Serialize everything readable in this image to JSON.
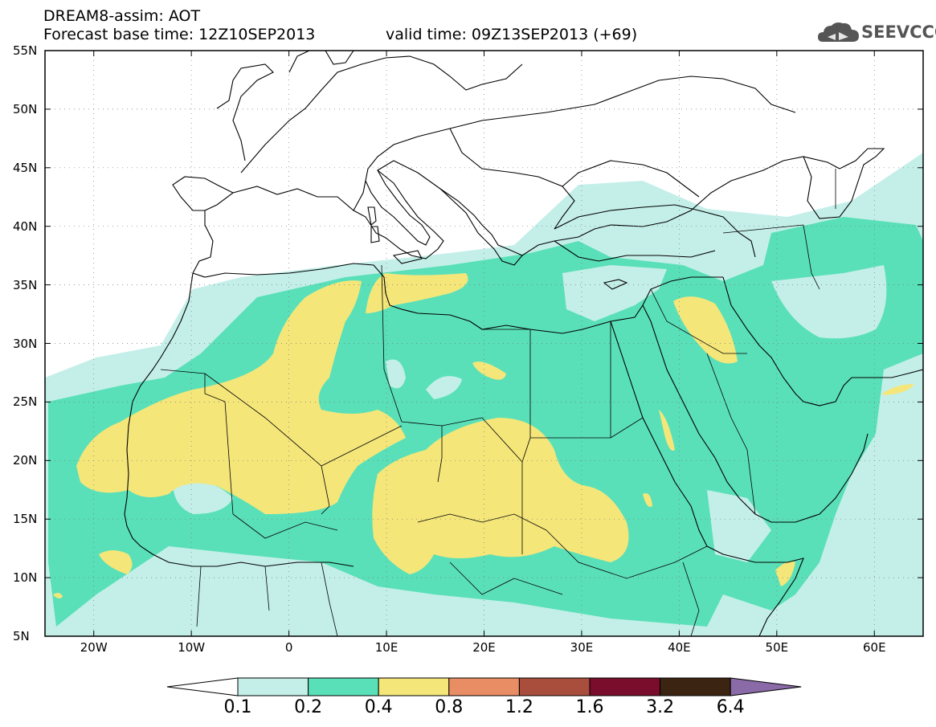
{
  "header": {
    "line1": "DREAM8-assim: AOT",
    "line2_base": "Forecast base time: 12Z10SEP2013",
    "line2_valid": "valid time: 09Z13SEP2013 (+69)"
  },
  "logo": {
    "text": "SEEVCCC",
    "icon": "cloud-icon",
    "color": "#555555"
  },
  "map": {
    "lon_range": [
      -25,
      65
    ],
    "lat_range": [
      5,
      55
    ],
    "lat_labels": [
      "55N",
      "50N",
      "45N",
      "40N",
      "35N",
      "30N",
      "25N",
      "20N",
      "15N",
      "10N",
      "5N"
    ],
    "lon_labels": [
      "20W",
      "10W",
      "0",
      "10E",
      "20E",
      "30E",
      "40E",
      "50E",
      "60E"
    ]
  },
  "colorbar": {
    "levels": [
      "0.1",
      "0.2",
      "0.4",
      "0.8",
      "1.2",
      "1.6",
      "3.2",
      "6.4"
    ],
    "colors": [
      "#ffffff",
      "#c4efe9",
      "#5ae0b8",
      "#f5e67a",
      "#e98e64",
      "#a94d3c",
      "#7a0c2c",
      "#3b2412",
      "#8b6aa8"
    ]
  }
}
